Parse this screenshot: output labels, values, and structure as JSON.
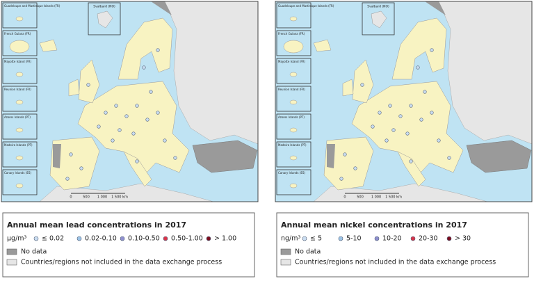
{
  "maps": [
    {
      "insets": [
        "Guadeloupe and Martinique Islands (FR)",
        "French Guiana (FR)",
        "Mayotte Island (FR)",
        "Reunion Island (FR)",
        "Azores Islands (PT)",
        "Madeira Islands (PT)",
        "Canary Islands (ES)"
      ],
      "svalbard": "Svalbard (NO)",
      "scale": [
        "0",
        "500",
        "1 000",
        "1 500 km"
      ],
      "legend": {
        "title": "Annual mean lead concentrations in 2017",
        "unit": "µg/m³",
        "classes": [
          {
            "label": "≤ 0.02",
            "color": "#c9dcf0"
          },
          {
            "label": "0.02-0.10",
            "color": "#9cc3e6"
          },
          {
            "label": "0.10-0.50",
            "color": "#8f8fcf"
          },
          {
            "label": "0.50-1.00",
            "color": "#d8344a"
          },
          {
            "label": "> 1.00",
            "color": "#7a0c1e"
          }
        ],
        "no_data": "No data",
        "not_included": "Countries/regions not included in the data exchange process"
      }
    },
    {
      "insets": [
        "Guadeloupe and Martinique Islands (FR)",
        "French Guiana (FR)",
        "Mayotte Island (FR)",
        "Reunion Island (FR)",
        "Azores Islands (PT)",
        "Madeira Islands (PT)",
        "Canary Islands (ES)"
      ],
      "svalbard": "Svalbard (NO)",
      "scale": [
        "0",
        "500",
        "1 000",
        "1 500 km"
      ],
      "legend": {
        "title": "Annual mean nickel concentrations in 2017",
        "unit": "ng/m³",
        "classes": [
          {
            "label": "≤ 5",
            "color": "#c9dcf0"
          },
          {
            "label": "5-10",
            "color": "#9cc3e6"
          },
          {
            "label": "10-20",
            "color": "#8f8fcf"
          },
          {
            "label": "20-30",
            "color": "#d8344a"
          },
          {
            "label": "> 30",
            "color": "#7a0c1e"
          }
        ],
        "no_data": "No data",
        "not_included": "Countries/regions not included in the data exchange process"
      }
    }
  ]
}
